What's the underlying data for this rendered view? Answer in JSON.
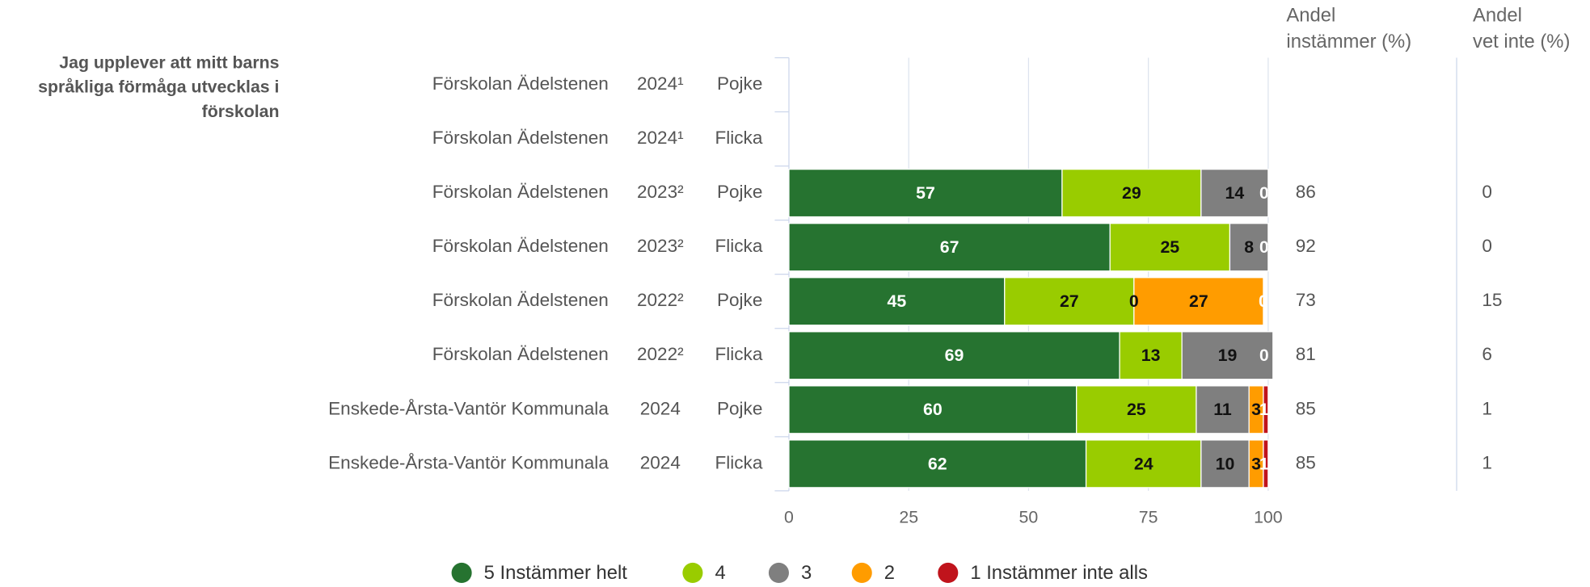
{
  "chart_data": {
    "type": "stacked-bar-horizontal",
    "question_lines": [
      "Jag upplever att mitt barns",
      "språkliga förmåga utvecklas i",
      "förskolan"
    ],
    "units": [
      "Förskolan Ädelstenen",
      "Förskolan Ädelstenen",
      "Förskolan Ädelstenen",
      "Förskolan Ädelstenen",
      "Förskolan Ädelstenen",
      "Förskolan Ädelstenen",
      "Enskede-Årsta-Vantör Kommunala",
      "Enskede-Årsta-Vantör Kommunala"
    ],
    "years": [
      "2024¹",
      "2024¹",
      "2023²",
      "2023²",
      "2022²",
      "2022²",
      "2024",
      "2024"
    ],
    "genders": [
      "Pojke",
      "Flicka",
      "Pojke",
      "Flicka",
      "Pojke",
      "Flicka",
      "Pojke",
      "Flicka"
    ],
    "series": [
      {
        "name": "5 Instämmer helt",
        "color": "#267330",
        "label_color": "#ffffff",
        "values": [
          null,
          null,
          57,
          67,
          45,
          69,
          60,
          62
        ]
      },
      {
        "name": "4",
        "color": "#99cc00",
        "label_color": "#111111",
        "values": [
          null,
          null,
          29,
          25,
          27,
          13,
          25,
          24
        ]
      },
      {
        "name": "3",
        "color": "#7f7f7f",
        "label_color": "#111111",
        "values": [
          null,
          null,
          14,
          8,
          0,
          19,
          11,
          10
        ]
      },
      {
        "name": "2",
        "color": "#ff9c00",
        "label_color": "#111111",
        "values": [
          null,
          null,
          0,
          0,
          27,
          0,
          3,
          3
        ]
      },
      {
        "name": "1 Instämmer inte alls",
        "color": "#c0141c",
        "label_color": "#ffffff",
        "values": [
          null,
          null,
          0,
          0,
          0,
          0,
          1,
          1
        ]
      }
    ],
    "xlim": [
      0,
      100
    ],
    "xticks": [
      0,
      25,
      50,
      75,
      100
    ],
    "grid": true,
    "columns": [
      {
        "header_lines": [
          "Andel",
          "instämmer (%)"
        ],
        "values": [
          null,
          null,
          86,
          92,
          73,
          81,
          85,
          85
        ]
      },
      {
        "header_lines": [
          "Andel",
          "vet inte (%)"
        ],
        "values": [
          null,
          null,
          0,
          0,
          15,
          6,
          1,
          1
        ]
      }
    ]
  }
}
